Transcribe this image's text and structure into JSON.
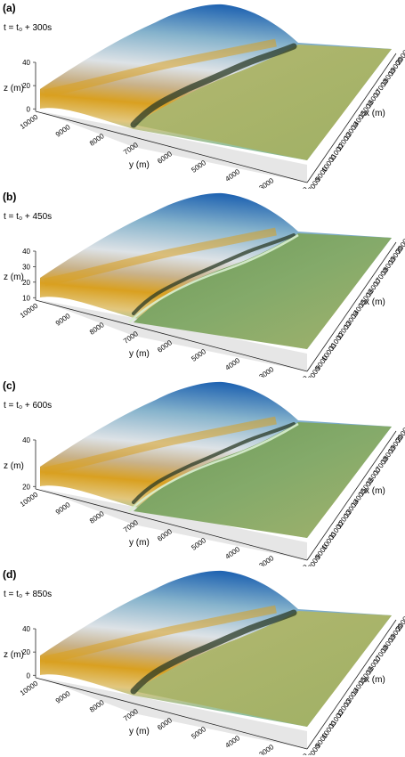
{
  "panels": [
    {
      "letter": "(a)",
      "time": "t = t₀ + 300s",
      "z_ticks": [
        "40",
        "20",
        "0"
      ],
      "front": "flat"
    },
    {
      "letter": "(b)",
      "time": "t = t₀ + 450s",
      "z_ticks": [
        "40",
        "30",
        "20",
        "10"
      ],
      "front": "ridge"
    },
    {
      "letter": "(c)",
      "time": "t = t₀ + 600s",
      "z_ticks": [
        "40",
        "20"
      ],
      "front": "ridge"
    },
    {
      "letter": "(d)",
      "time": "t = t₀ + 850s",
      "z_ticks": [
        "40",
        "20",
        "0"
      ],
      "front": "flat"
    }
  ],
  "axes": {
    "z_label": "z (m)",
    "y_label": "y (m)",
    "x_label": "x (m)",
    "y_ticks": [
      "10000",
      "9000",
      "8000",
      "7000",
      "6000",
      "5000",
      "4000",
      "3000",
      "2000"
    ],
    "x_ticks": [
      "8000",
      "9000",
      "10000",
      "11000",
      "12000",
      "13000",
      "14000",
      "15000",
      "16000",
      "17000",
      "18000",
      "19000",
      "20000"
    ]
  },
  "colors": {
    "peak_blue": "#1a5fb0",
    "snow": "#dde2e6",
    "rock_gold": "#d9a020",
    "ridge_dark": "#2a3a26",
    "flood_green": "#6f9a58",
    "flood_olive": "#b4b872"
  }
}
